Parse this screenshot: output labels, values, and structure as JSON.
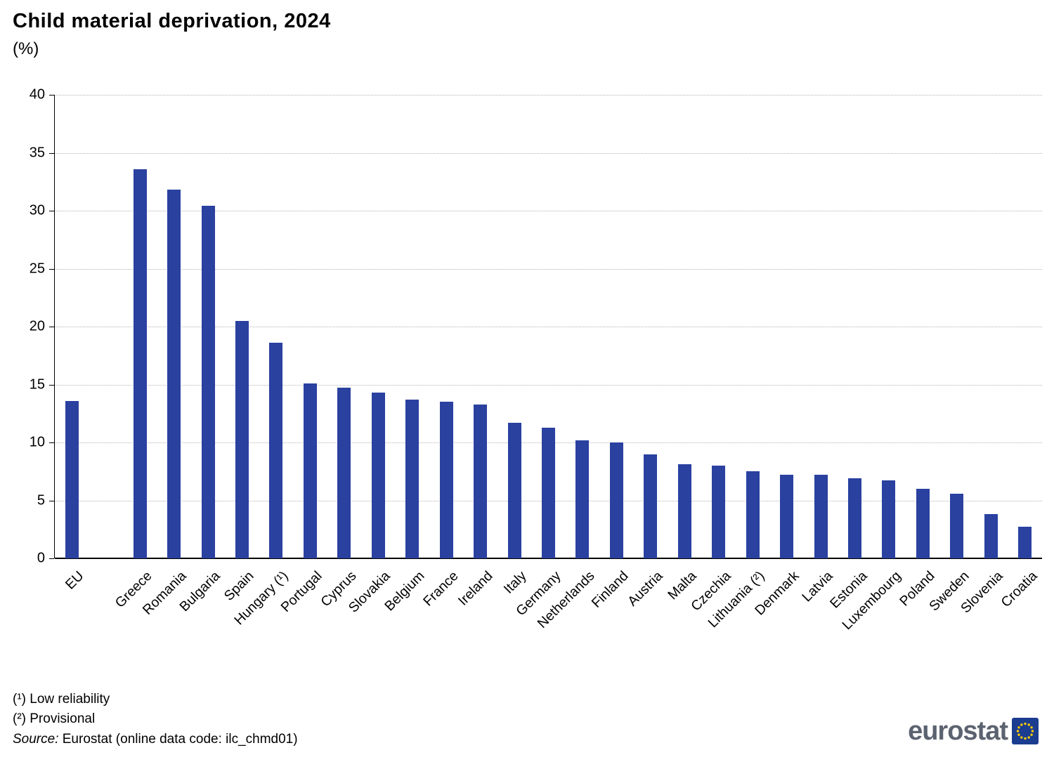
{
  "title": "Child material deprivation, 2024",
  "subtitle": "(%)",
  "footnotes": {
    "note1": "(¹) Low reliability",
    "note2": "(²) Provisional"
  },
  "source": {
    "label": "Source:",
    "text": " Eurostat (online data code: ilc_chmd01)"
  },
  "logo": {
    "text": "eurostat",
    "flag_icon": "eu-flag-icon"
  },
  "colors": {
    "bar": "#2a41a0",
    "grid": "#b3b3b3",
    "axis": "#000000",
    "logo_gray": "#5c6370",
    "logo_blue": "#1b3d8f",
    "star_yellow": "#ffcc00"
  },
  "chart_data": {
    "type": "bar",
    "title": "Child material deprivation, 2024",
    "xlabel": "",
    "ylabel": "(%)",
    "ylim": [
      0,
      40
    ],
    "yticks": [
      0,
      5,
      10,
      15,
      20,
      25,
      30,
      35,
      40
    ],
    "grid": true,
    "legend": "none",
    "gap_after_first": true,
    "categories": [
      "EU",
      "Greece",
      "Romania",
      "Bulgaria",
      "Spain",
      "Hungary (¹)",
      "Portugal",
      "Cyprus",
      "Slovakia",
      "Belgium",
      "France",
      "Ireland",
      "Italy",
      "Germany",
      "Netherlands",
      "Finland",
      "Austria",
      "Malta",
      "Czechia",
      "Lithuania (²)",
      "Denmark",
      "Latvia",
      "Estonia",
      "Luxembourg",
      "Poland",
      "Sweden",
      "Slovenia",
      "Croatia"
    ],
    "values": [
      13.6,
      33.6,
      31.8,
      30.4,
      20.5,
      18.6,
      15.1,
      14.7,
      14.3,
      13.7,
      13.5,
      13.3,
      11.7,
      11.3,
      10.2,
      10.0,
      9.0,
      8.1,
      8.0,
      7.5,
      7.2,
      7.2,
      6.9,
      6.7,
      6.0,
      5.6,
      3.8,
      2.7
    ]
  }
}
